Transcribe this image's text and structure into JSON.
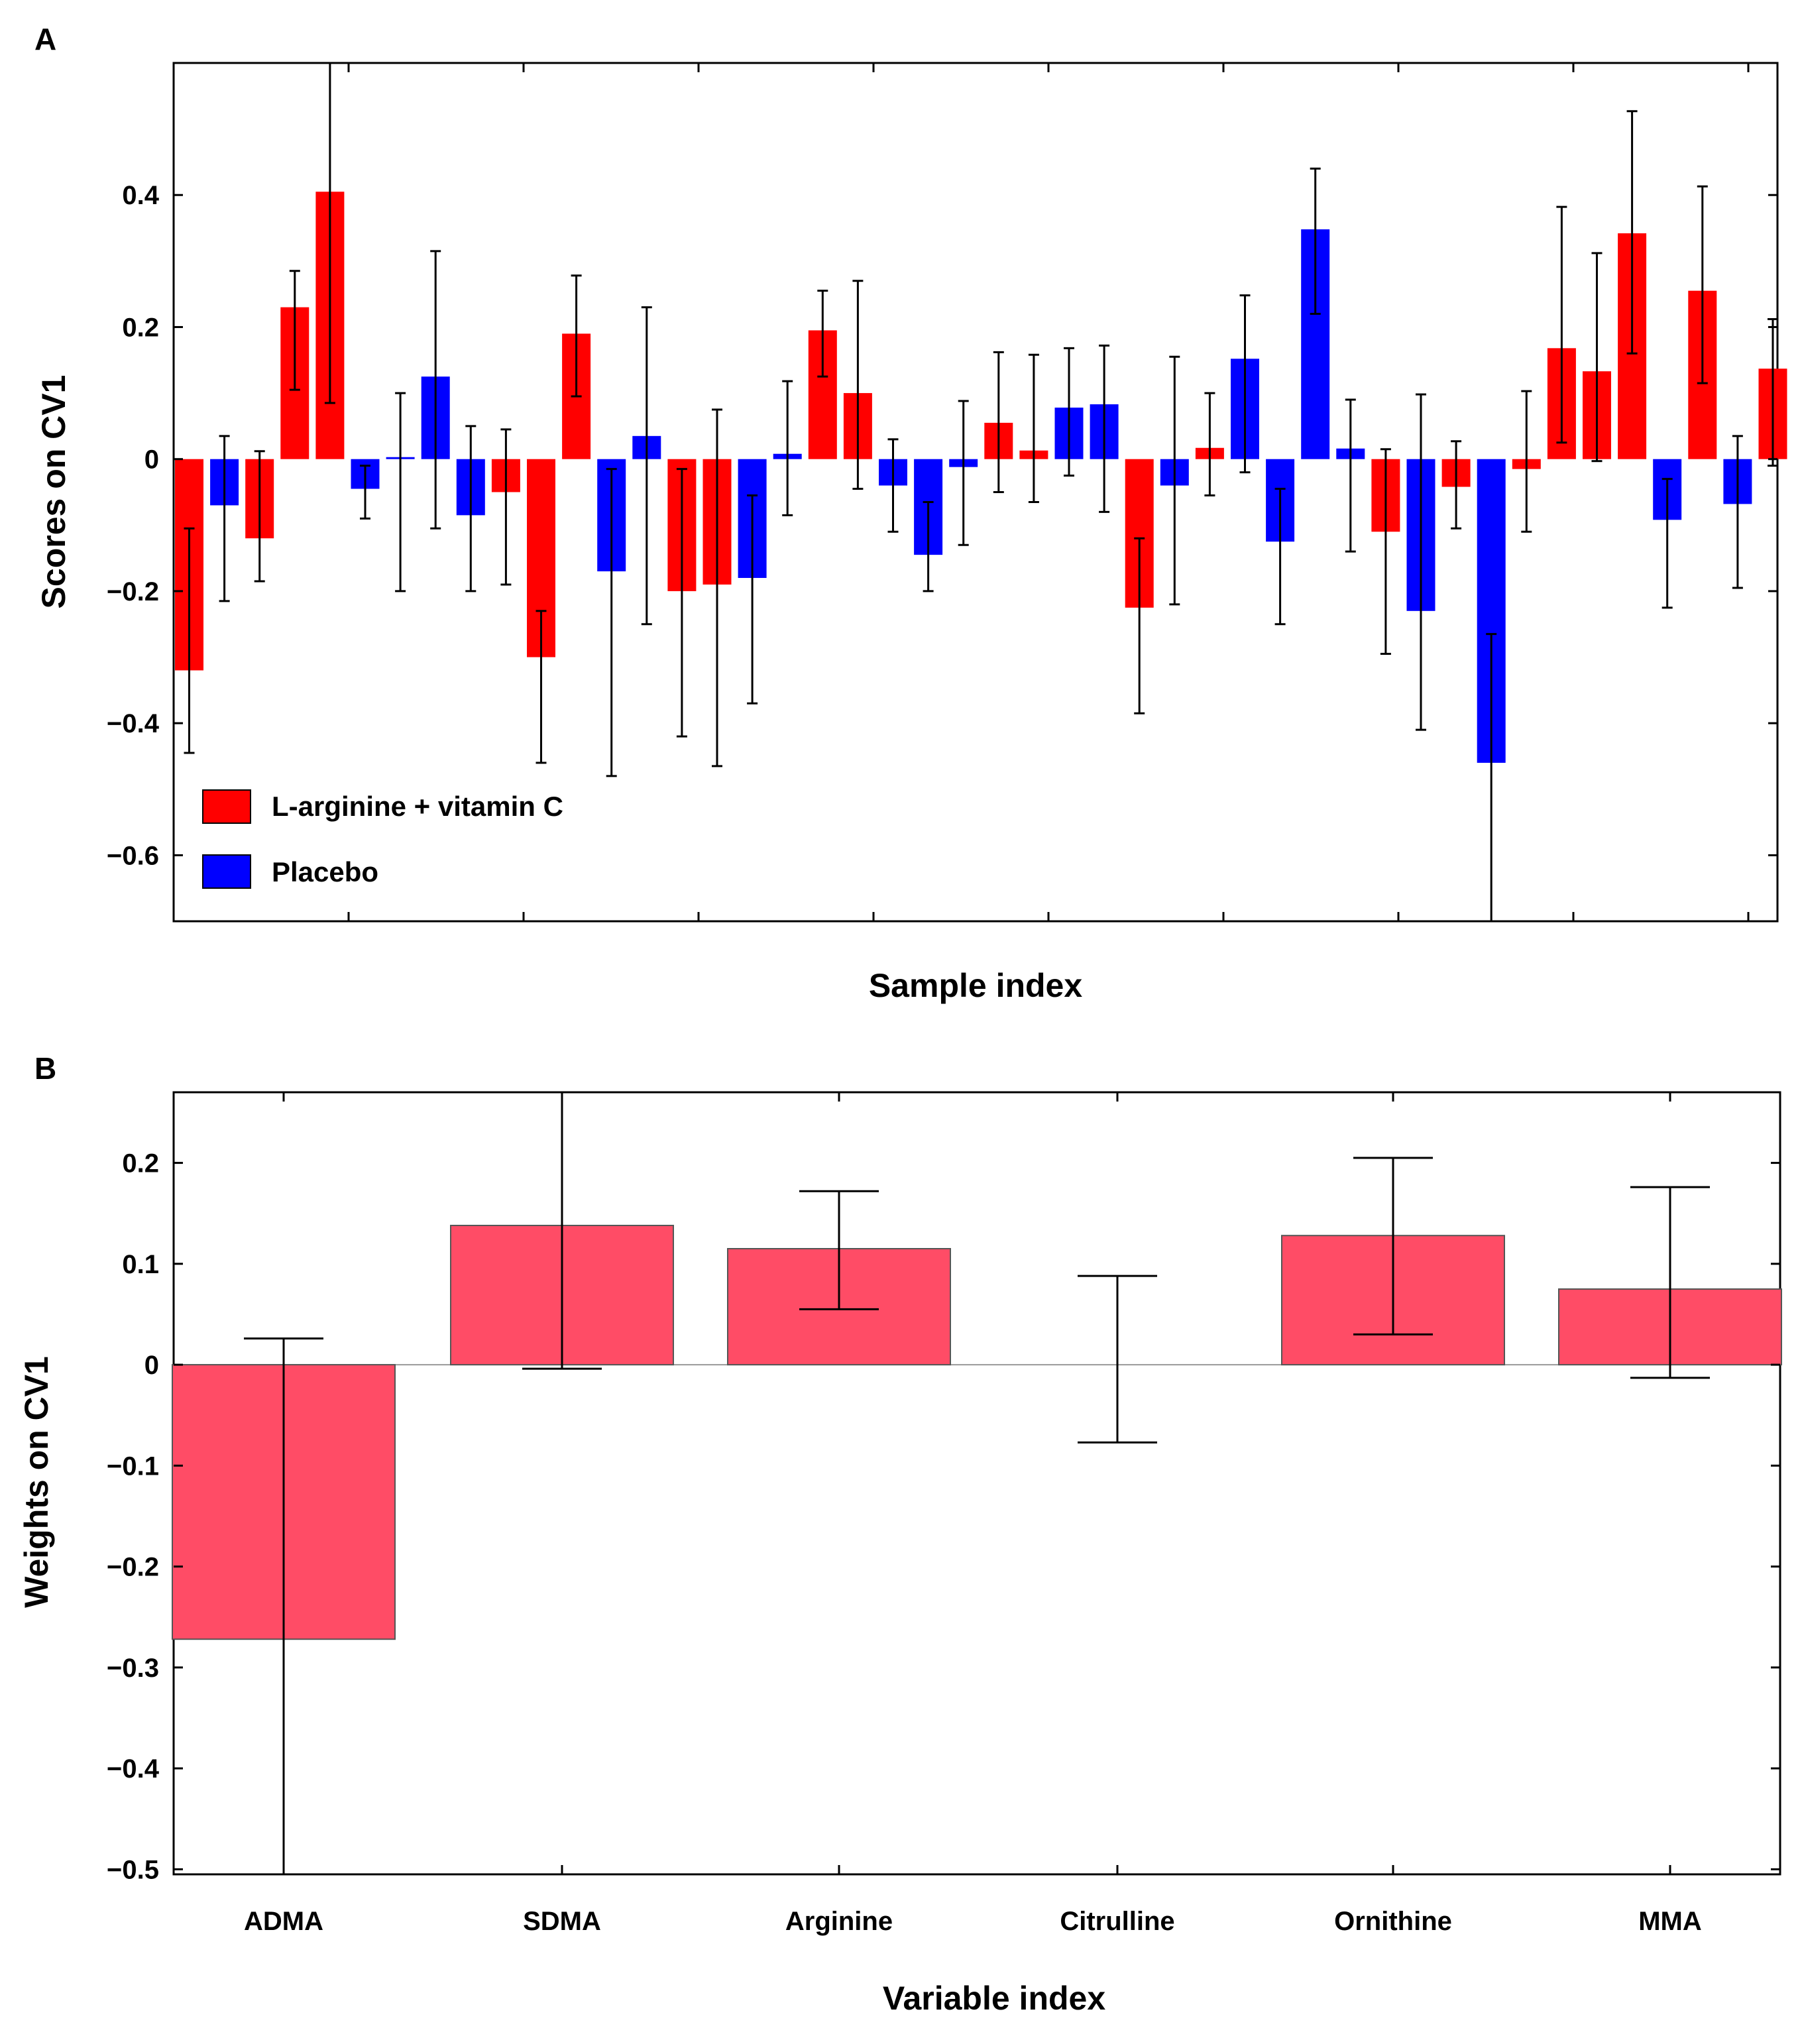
{
  "panels": {
    "a": {
      "letter": "A"
    },
    "b": {
      "letter": "B"
    }
  },
  "chart_data": [
    {
      "id": "A",
      "type": "bar",
      "title": "",
      "xlabel": "Sample index",
      "ylabel": "Scores on CV1",
      "ylim": [
        -0.7,
        0.6
      ],
      "yticks": [
        0.4,
        0.2,
        0,
        -0.2,
        -0.4,
        -0.6
      ],
      "ytick_labels": [
        "0.4",
        "0.2",
        "0",
        "−0.2",
        "−0.4",
        "−0.6"
      ],
      "grid": false,
      "legend_position": "bottom-left",
      "series": [
        {
          "name": "L-arginine + vitamin C",
          "color": "#ff0000"
        },
        {
          "name": "Placebo",
          "color": "#0000ff"
        }
      ],
      "bars": [
        {
          "group": 0,
          "value": -0.32,
          "err_low": -0.445,
          "err_high": -0.105
        },
        {
          "group": 1,
          "value": -0.07,
          "err_low": -0.215,
          "err_high": 0.035
        },
        {
          "group": 0,
          "value": -0.12,
          "err_low": -0.185,
          "err_high": 0.012
        },
        {
          "group": 0,
          "value": 0.23,
          "err_low": 0.105,
          "err_high": 0.285
        },
        {
          "group": 0,
          "value": 0.405,
          "err_low": 0.085,
          "err_high": 0.6
        },
        {
          "group": 1,
          "value": -0.045,
          "err_low": -0.09,
          "err_high": -0.01
        },
        {
          "group": 1,
          "value": 0.003,
          "err_low": -0.2,
          "err_high": 0.1
        },
        {
          "group": 1,
          "value": 0.125,
          "err_low": -0.105,
          "err_high": 0.315
        },
        {
          "group": 1,
          "value": -0.085,
          "err_low": -0.2,
          "err_high": 0.05
        },
        {
          "group": 0,
          "value": -0.05,
          "err_low": -0.19,
          "err_high": 0.045
        },
        {
          "group": 0,
          "value": -0.3,
          "err_low": -0.46,
          "err_high": -0.23
        },
        {
          "group": 0,
          "value": 0.19,
          "err_low": 0.095,
          "err_high": 0.278
        },
        {
          "group": 1,
          "value": -0.17,
          "err_low": -0.48,
          "err_high": -0.015
        },
        {
          "group": 1,
          "value": 0.035,
          "err_low": -0.25,
          "err_high": 0.23
        },
        {
          "group": 0,
          "value": -0.2,
          "err_low": -0.42,
          "err_high": -0.015
        },
        {
          "group": 0,
          "value": -0.19,
          "err_low": -0.465,
          "err_high": 0.075
        },
        {
          "group": 1,
          "value": -0.18,
          "err_low": -0.37,
          "err_high": -0.055
        },
        {
          "group": 1,
          "value": 0.008,
          "err_low": -0.085,
          "err_high": 0.118
        },
        {
          "group": 0,
          "value": 0.195,
          "err_low": 0.125,
          "err_high": 0.255
        },
        {
          "group": 0,
          "value": 0.1,
          "err_low": -0.045,
          "err_high": 0.27
        },
        {
          "group": 1,
          "value": -0.04,
          "err_low": -0.11,
          "err_high": 0.03
        },
        {
          "group": 1,
          "value": -0.145,
          "err_low": -0.2,
          "err_high": -0.065
        },
        {
          "group": 1,
          "value": -0.012,
          "err_low": -0.13,
          "err_high": 0.088
        },
        {
          "group": 0,
          "value": 0.055,
          "err_low": -0.05,
          "err_high": 0.162
        },
        {
          "group": 0,
          "value": 0.013,
          "err_low": -0.065,
          "err_high": 0.158
        },
        {
          "group": 1,
          "value": 0.078,
          "err_low": -0.025,
          "err_high": 0.168
        },
        {
          "group": 1,
          "value": 0.083,
          "err_low": -0.08,
          "err_high": 0.172
        },
        {
          "group": 0,
          "value": -0.225,
          "err_low": -0.385,
          "err_high": -0.12
        },
        {
          "group": 1,
          "value": -0.04,
          "err_low": -0.22,
          "err_high": 0.155
        },
        {
          "group": 0,
          "value": 0.017,
          "err_low": -0.055,
          "err_high": 0.1
        },
        {
          "group": 1,
          "value": 0.152,
          "err_low": -0.02,
          "err_high": 0.248
        },
        {
          "group": 1,
          "value": -0.125,
          "err_low": -0.25,
          "err_high": -0.045
        },
        {
          "group": 1,
          "value": 0.348,
          "err_low": 0.22,
          "err_high": 0.44
        },
        {
          "group": 1,
          "value": 0.016,
          "err_low": -0.14,
          "err_high": 0.09
        },
        {
          "group": 0,
          "value": -0.11,
          "err_low": -0.295,
          "err_high": 0.015
        },
        {
          "group": 1,
          "value": -0.23,
          "err_low": -0.41,
          "err_high": 0.098
        },
        {
          "group": 0,
          "value": -0.042,
          "err_low": -0.105,
          "err_high": 0.027
        },
        {
          "group": 1,
          "value": -0.46,
          "err_low": -0.7,
          "err_high": -0.265
        },
        {
          "group": 0,
          "value": -0.015,
          "err_low": -0.11,
          "err_high": 0.103
        },
        {
          "group": 0,
          "value": 0.168,
          "err_low": 0.025,
          "err_high": 0.382
        },
        {
          "group": 0,
          "value": 0.133,
          "err_low": -0.003,
          "err_high": 0.312
        },
        {
          "group": 0,
          "value": 0.342,
          "err_low": 0.16,
          "err_high": 0.527
        },
        {
          "group": 1,
          "value": -0.092,
          "err_low": -0.225,
          "err_high": -0.03
        },
        {
          "group": 0,
          "value": 0.255,
          "err_low": 0.115,
          "err_high": 0.413
        },
        {
          "group": 1,
          "value": -0.068,
          "err_low": -0.195,
          "err_high": 0.035
        },
        {
          "group": 0,
          "value": 0.137,
          "err_low": -0.01,
          "err_high": 0.212
        }
      ]
    },
    {
      "id": "B",
      "type": "bar",
      "title": "",
      "xlabel": "Variable index",
      "ylabel": "Weights on CV1",
      "ylim": [
        -0.505,
        0.27
      ],
      "yticks": [
        0.2,
        0.1,
        0,
        -0.1,
        -0.2,
        -0.3,
        -0.4,
        -0.5
      ],
      "ytick_labels": [
        "0.2",
        "0.1",
        "0",
        "−0.1",
        "−0.2",
        "−0.3",
        "−0.4",
        "−0.5"
      ],
      "grid": false,
      "bar_color": "#ff4c66",
      "categories": [
        "ADMA",
        "SDMA",
        "Arginine",
        "Citrulline",
        "Ornithine",
        "MMA"
      ],
      "values": [
        -0.272,
        0.138,
        0.115,
        0.0,
        0.128,
        0.075
      ],
      "err_low": [
        -0.505,
        -0.004,
        0.055,
        -0.077,
        0.03,
        -0.013
      ],
      "err_high": [
        0.026,
        0.27,
        0.172,
        0.088,
        0.205,
        0.176
      ]
    }
  ]
}
